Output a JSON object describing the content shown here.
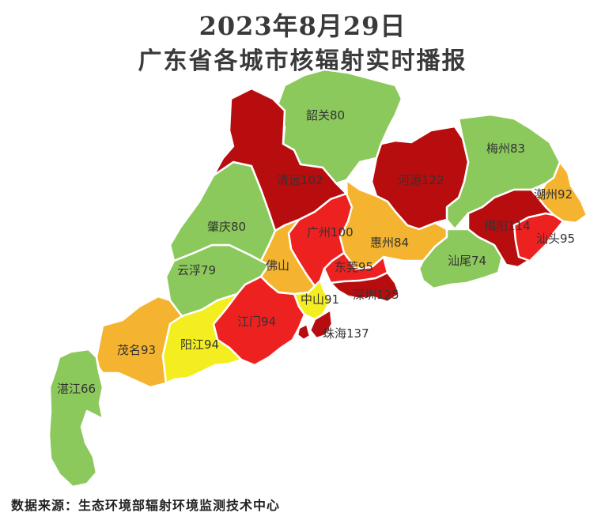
{
  "title": {
    "line1": "2023年8月29日",
    "line2": "广东省各城市核辐射实时播报"
  },
  "colors": {
    "green": "#8cc95d",
    "yellow": "#f4ee20",
    "orange": "#f4b42f",
    "red": "#ee2121",
    "darkred": "#b80d0f"
  },
  "cities": [
    {
      "id": "shaoguan",
      "name": "韶关",
      "value": "80",
      "label": "韶关80",
      "color": "green"
    },
    {
      "id": "meizhou",
      "name": "梅州",
      "value": "83",
      "label": "梅州83",
      "color": "green"
    },
    {
      "id": "qingyuan",
      "name": "清远",
      "value": "102",
      "label": "清远102",
      "color": "darkred"
    },
    {
      "id": "heyuan",
      "name": "河源",
      "value": "122",
      "label": "河源122",
      "color": "darkred"
    },
    {
      "id": "chaozhou",
      "name": "潮州",
      "value": "92",
      "label": "潮州92",
      "color": "orange"
    },
    {
      "id": "zhaoqing",
      "name": "肇庆",
      "value": "80",
      "label": "肇庆80",
      "color": "green"
    },
    {
      "id": "guangzhou",
      "name": "广州",
      "value": "100",
      "label": "广州100",
      "color": "red"
    },
    {
      "id": "huizhou",
      "name": "惠州",
      "value": "84",
      "label": "惠州84",
      "color": "orange"
    },
    {
      "id": "jieyang",
      "name": "揭阳",
      "value": "114",
      "label": "揭阳114",
      "color": "darkred"
    },
    {
      "id": "shantou",
      "name": "汕头",
      "value": "95",
      "label": "汕头95",
      "color": "red"
    },
    {
      "id": "foshan",
      "name": "佛山",
      "value": "",
      "label": "佛山",
      "color": "orange"
    },
    {
      "id": "dongguan",
      "name": "东莞",
      "value": "95",
      "label": "东莞95",
      "color": "red"
    },
    {
      "id": "shanwei",
      "name": "汕尾",
      "value": "74",
      "label": "汕尾74",
      "color": "green"
    },
    {
      "id": "yunfu",
      "name": "云浮",
      "value": "79",
      "label": "云浮79",
      "color": "green"
    },
    {
      "id": "zhongshan",
      "name": "中山",
      "value": "91",
      "label": "中山91",
      "color": "yellow"
    },
    {
      "id": "shenzhen",
      "name": "深圳",
      "value": "125",
      "label": "深圳125",
      "color": "darkred"
    },
    {
      "id": "jiangmen",
      "name": "江门",
      "value": "94",
      "label": "江门94",
      "color": "red"
    },
    {
      "id": "zhuhai",
      "name": "珠海",
      "value": "137",
      "label": "珠海137",
      "color": "darkred"
    },
    {
      "id": "maoming",
      "name": "茂名",
      "value": "93",
      "label": "茂名93",
      "color": "orange"
    },
    {
      "id": "yangjiang",
      "name": "阳江",
      "value": "94",
      "label": "阳江94",
      "color": "yellow"
    },
    {
      "id": "zhanjiang",
      "name": "湛江",
      "value": "66",
      "label": "湛江66",
      "color": "green"
    }
  ],
  "source": "数据来源：生态环境部辐射环境监测技术中心"
}
